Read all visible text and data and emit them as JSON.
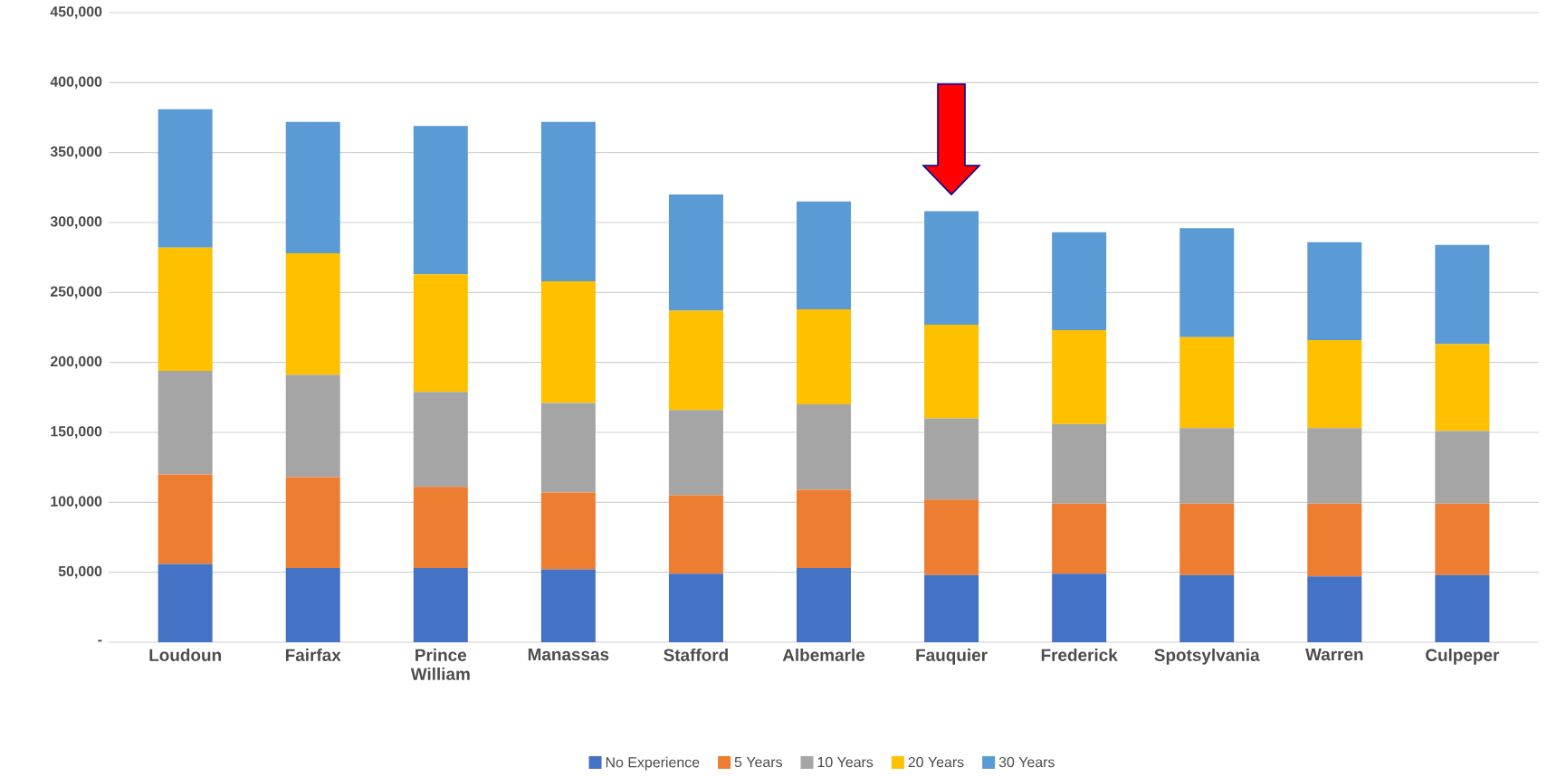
{
  "chart_data": {
    "type": "bar",
    "stacked": true,
    "grid": "y",
    "legend": "bottom",
    "categories": [
      "Loudoun",
      "Fairfax",
      "Prince William",
      "Manassas",
      "Stafford",
      "Albemarle",
      "Fauquier",
      "Frederick",
      "Spotsylvania",
      "Warren",
      "Culpeper"
    ],
    "series": [
      {
        "name": "No Experience",
        "color": "#4472c4",
        "values": [
          56000,
          53000,
          53000,
          52000,
          49000,
          53000,
          48000,
          49000,
          48000,
          47000,
          48000
        ]
      },
      {
        "name": "5 Years",
        "color": "#ed7d31",
        "values": [
          64000,
          65000,
          58000,
          55000,
          56000,
          56000,
          54000,
          50000,
          51000,
          52000,
          51000
        ]
      },
      {
        "name": "10 Years",
        "color": "#a5a5a5",
        "values": [
          74000,
          73000,
          68000,
          64000,
          61000,
          61000,
          58000,
          57000,
          54000,
          54000,
          52000
        ]
      },
      {
        "name": "20 Years",
        "color": "#ffc000",
        "values": [
          88000,
          87000,
          84000,
          87000,
          71000,
          68000,
          67000,
          67000,
          65000,
          63000,
          62000
        ]
      },
      {
        "name": "30 Years",
        "color": "#5b9bd5",
        "values": [
          99000,
          94000,
          106000,
          114000,
          83000,
          77000,
          81000,
          70000,
          78000,
          70000,
          71000
        ]
      }
    ],
    "ylim": [
      0,
      450000
    ],
    "yticks": [
      {
        "value": 0,
        "label": "-"
      },
      {
        "value": 50000,
        "label": "50,000"
      },
      {
        "value": 100000,
        "label": "100,000"
      },
      {
        "value": 150000,
        "label": "150,000"
      },
      {
        "value": 200000,
        "label": "200,000"
      },
      {
        "value": 250000,
        "label": "250,000"
      },
      {
        "value": 300000,
        "label": "300,000"
      },
      {
        "value": 350000,
        "label": "350,000"
      },
      {
        "value": 400000,
        "label": "400,000"
      },
      {
        "value": 450000,
        "label": "450,000"
      }
    ]
  }
}
